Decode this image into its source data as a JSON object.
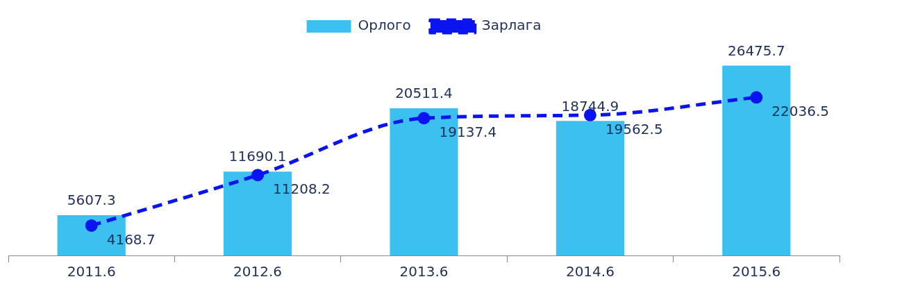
{
  "chart_data": {
    "type": "bar",
    "categories": [
      "2011.6",
      "2012.6",
      "2013.6",
      "2014.6",
      "2015.6"
    ],
    "series": [
      {
        "name": "Орлого",
        "color": "#3bc0f0",
        "values": [
          5607.3,
          11690.1,
          20511.4,
          18744.9,
          26475.7
        ]
      },
      {
        "name": "Зарлага",
        "type": "line",
        "color": "#0a14f0",
        "values": [
          4168.7,
          11208.2,
          19137.4,
          19562.5,
          22036.5
        ],
        "marker": "circle",
        "line_style": "dashed"
      }
    ],
    "data_labels": true,
    "legend": "top",
    "grid": false,
    "tick_labels": "x"
  }
}
